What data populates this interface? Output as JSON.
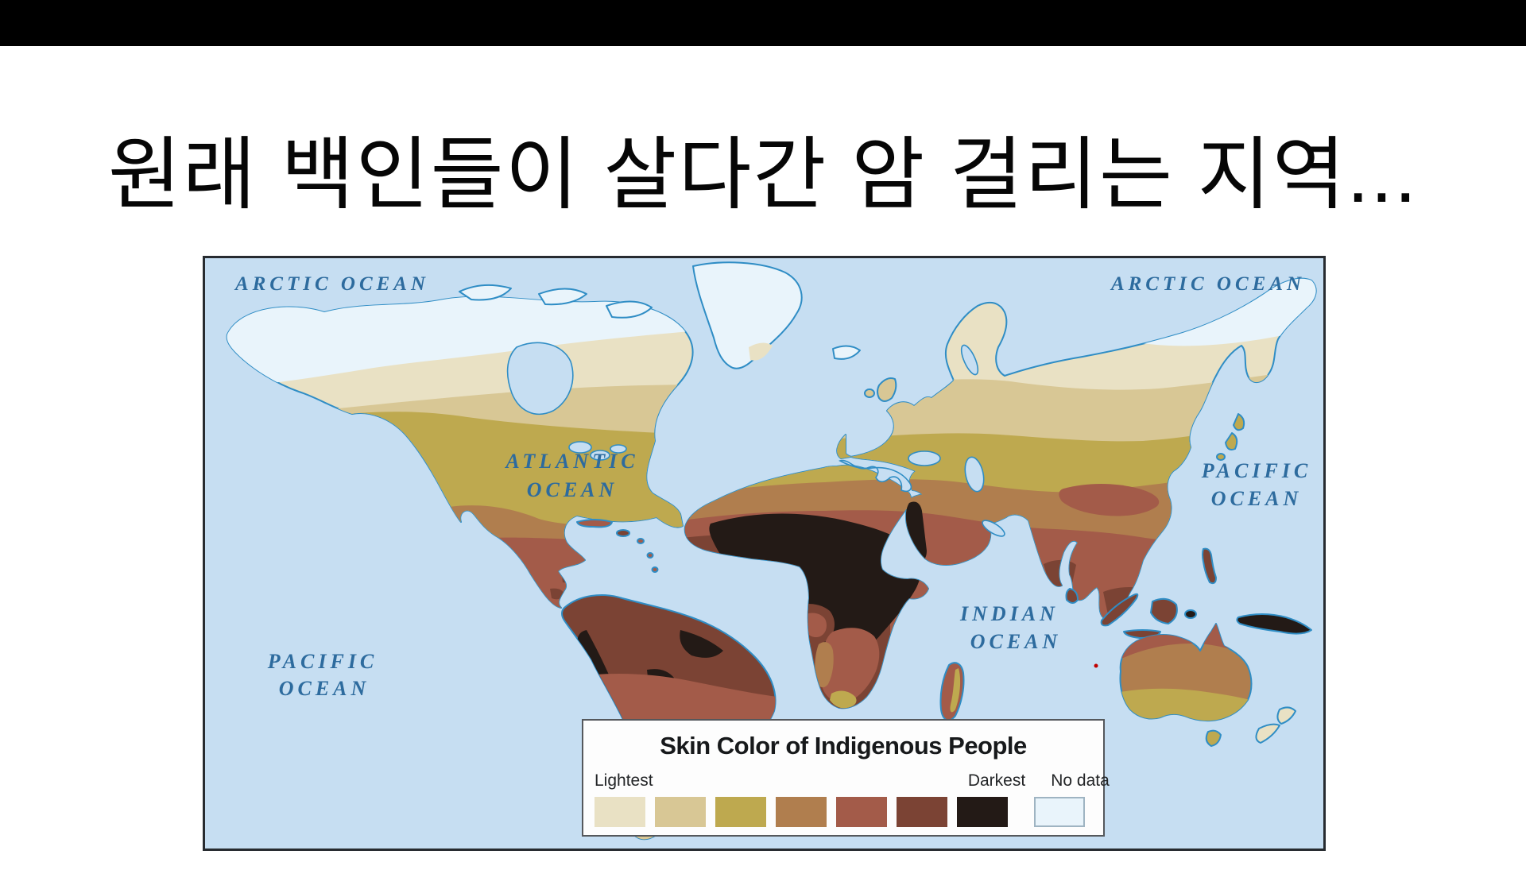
{
  "page": {
    "top_bar_color": "#000000",
    "background": "#ffffff"
  },
  "title": {
    "text": "원래 백인들이 살다간 암 걸리는 지역..."
  },
  "map": {
    "border_color": "#272b30",
    "ocean_color": "#c6def2",
    "coast_color": "#2f8dc5",
    "label_color": "#2d6b9e",
    "labels": {
      "arctic_left": "ARCTIC OCEAN",
      "arctic_right": "ARCTIC OCEAN",
      "atlantic_1": "ATLANTIC",
      "atlantic_2": "OCEAN",
      "pacific_right_1": "PACIFIC",
      "pacific_right_2": "OCEAN",
      "indian_1": "INDIAN",
      "indian_2": "OCEAN",
      "pacific_left_1": "PACIFIC",
      "pacific_left_2": "OCEAN"
    },
    "legend": {
      "title": "Skin Color of Indigenous People",
      "lightest": "Lightest",
      "darkest": "Darkest",
      "no_data": "No data",
      "scale_colors": [
        "#e9e1c4",
        "#d8c795",
        "#bea94f",
        "#b07e4e",
        "#a35b49",
        "#7b4334",
        "#231a16"
      ],
      "no_data_color": "#e9f4fb",
      "no_data_border": "#9fb4c2"
    }
  }
}
